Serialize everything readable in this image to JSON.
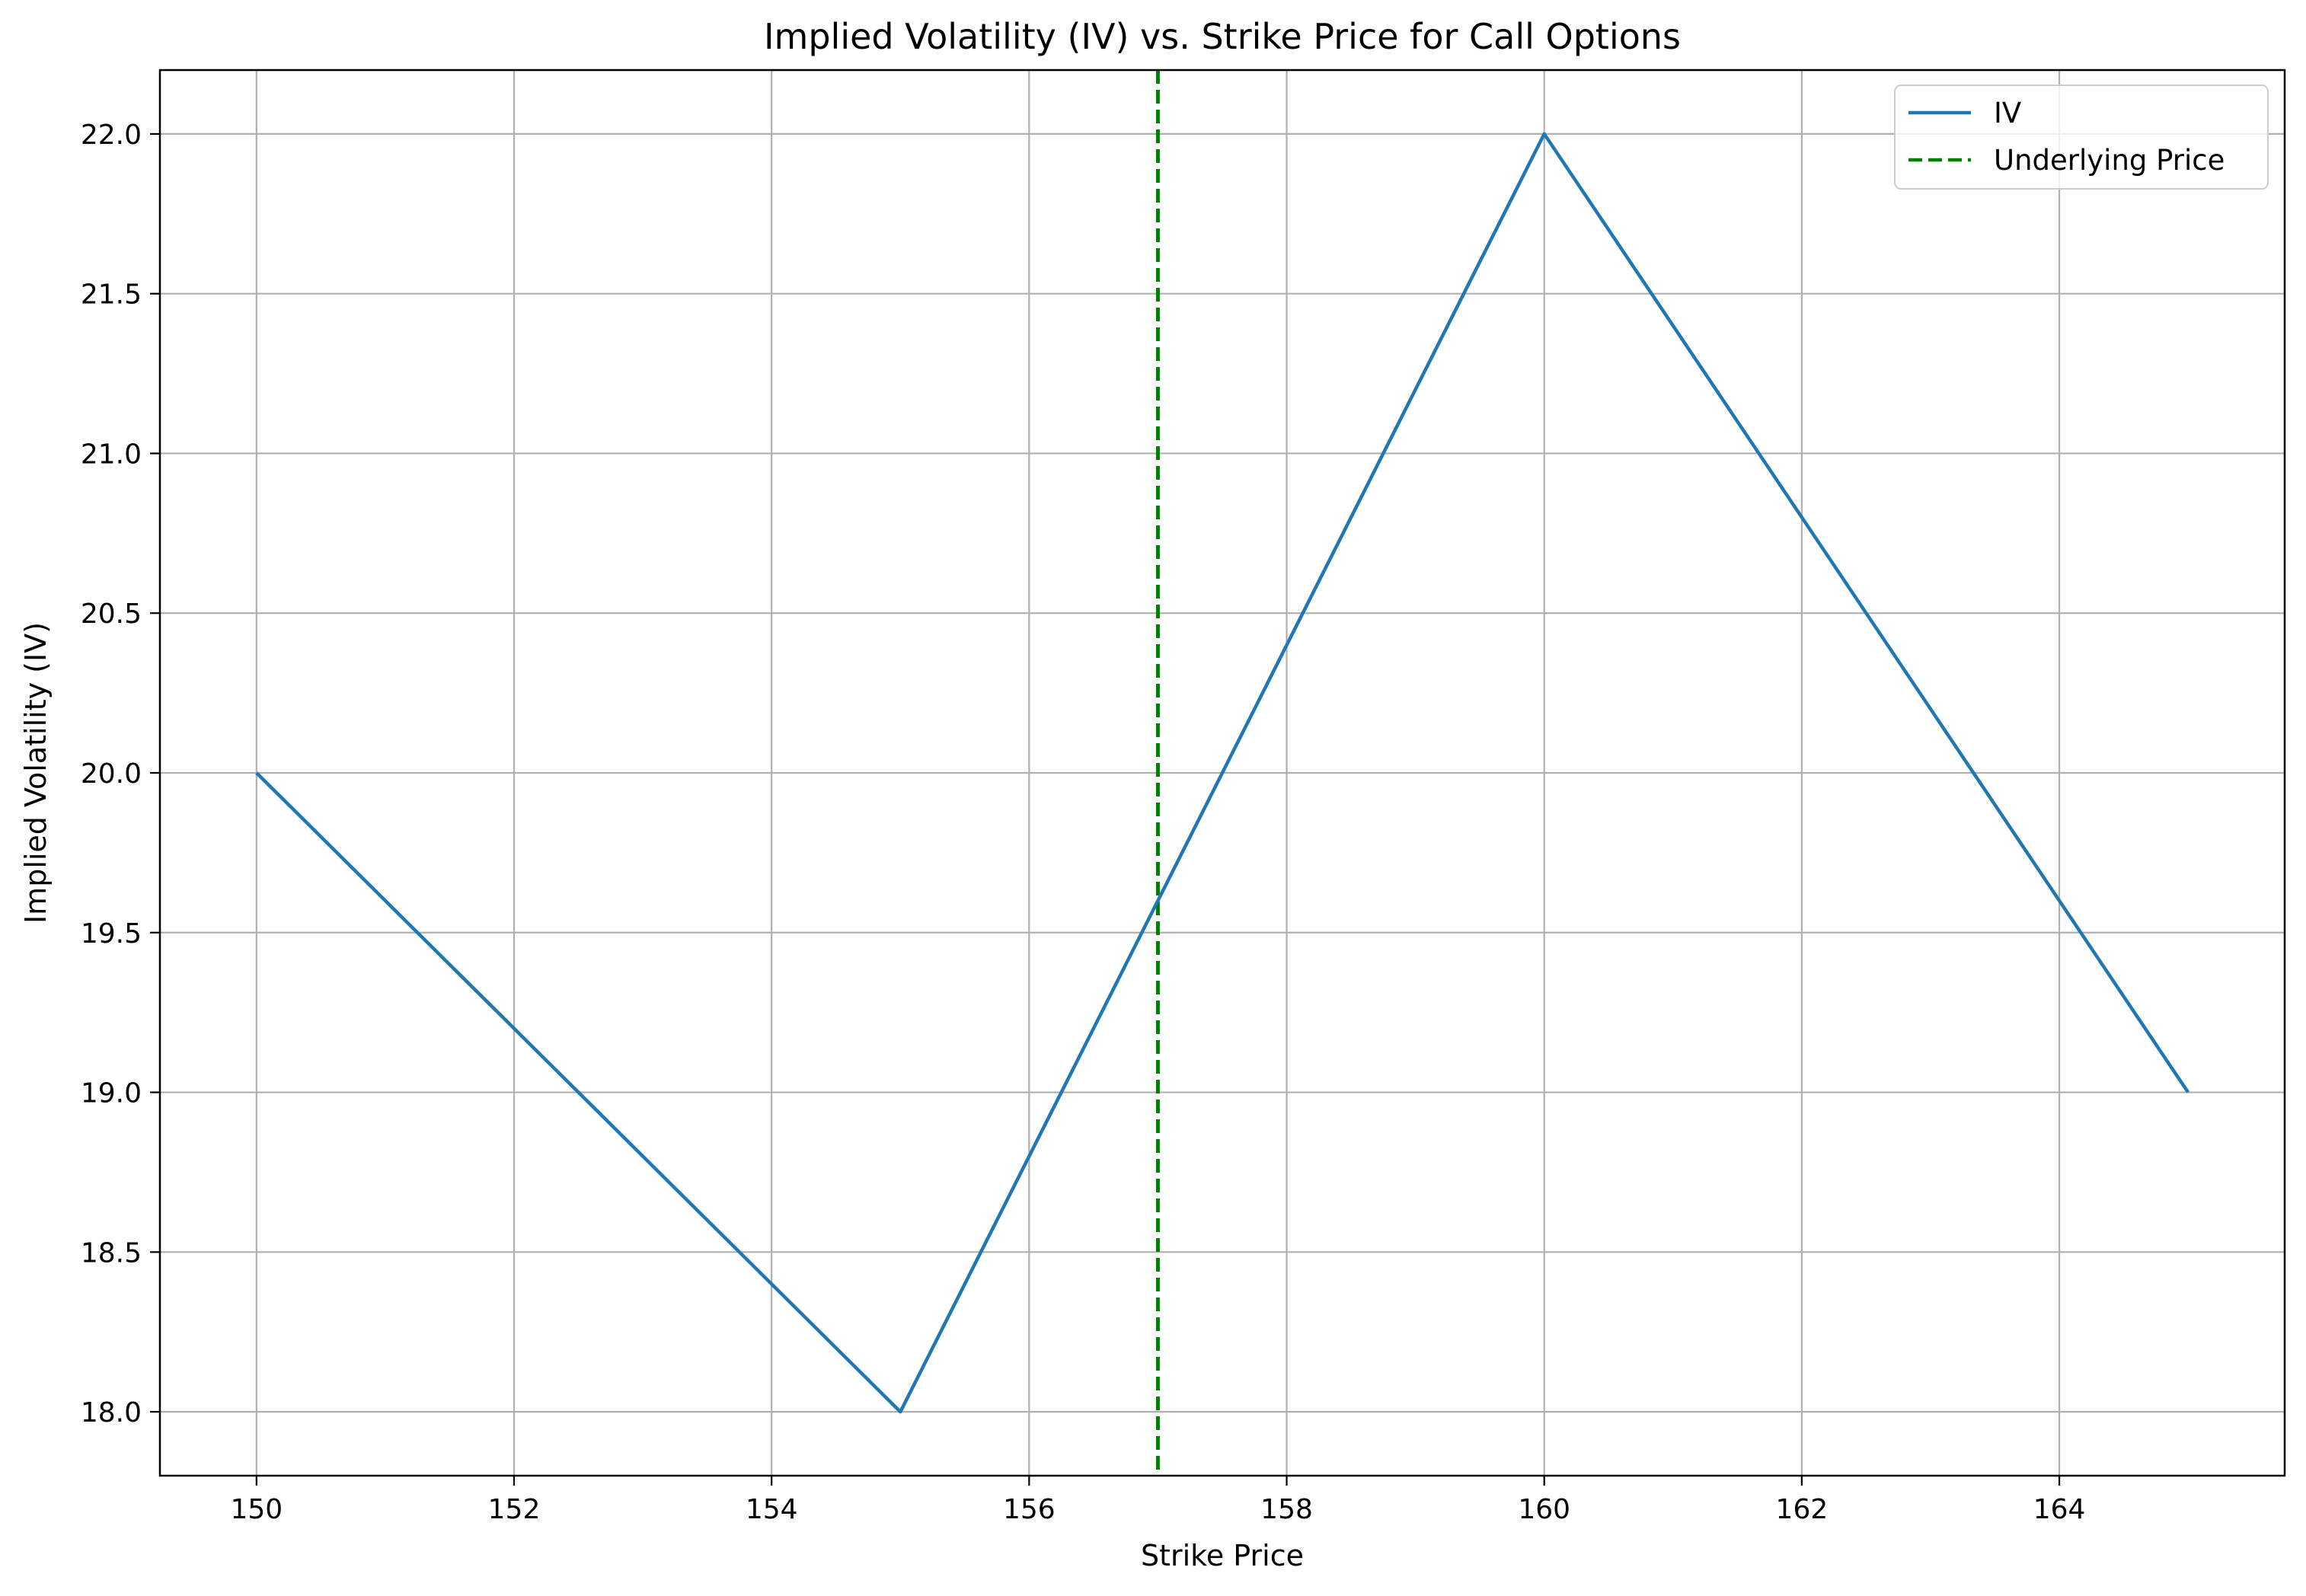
{
  "chart_data": {
    "type": "line",
    "title": "Implied Volatility (IV) vs. Strike Price for Call Options",
    "xlabel": "Strike Price",
    "ylabel": "Implied Volatility (IV)",
    "xlim": [
      149.25,
      165.75
    ],
    "ylim": [
      17.8,
      22.2
    ],
    "xticks": [
      150,
      152,
      154,
      156,
      158,
      160,
      162,
      164
    ],
    "yticks": [
      18.0,
      18.5,
      19.0,
      19.5,
      20.0,
      20.5,
      21.0,
      21.5,
      22.0
    ],
    "xtick_labels": [
      "150",
      "152",
      "154",
      "156",
      "158",
      "160",
      "162",
      "164"
    ],
    "ytick_labels": [
      "18.0",
      "18.5",
      "19.0",
      "19.5",
      "20.0",
      "20.5",
      "21.0",
      "21.5",
      "22.0"
    ],
    "grid": true,
    "legend_position": "upper-right",
    "series": [
      {
        "name": "IV",
        "x": [
          150,
          155,
          160,
          165
        ],
        "values": [
          20.0,
          18.0,
          22.0,
          19.0
        ],
        "color": "#1f77b4",
        "style": "solid"
      }
    ],
    "reference_lines": [
      {
        "name": "Underlying Price",
        "orientation": "vertical",
        "x": 157,
        "color": "#008000",
        "style": "dashed"
      }
    ]
  }
}
